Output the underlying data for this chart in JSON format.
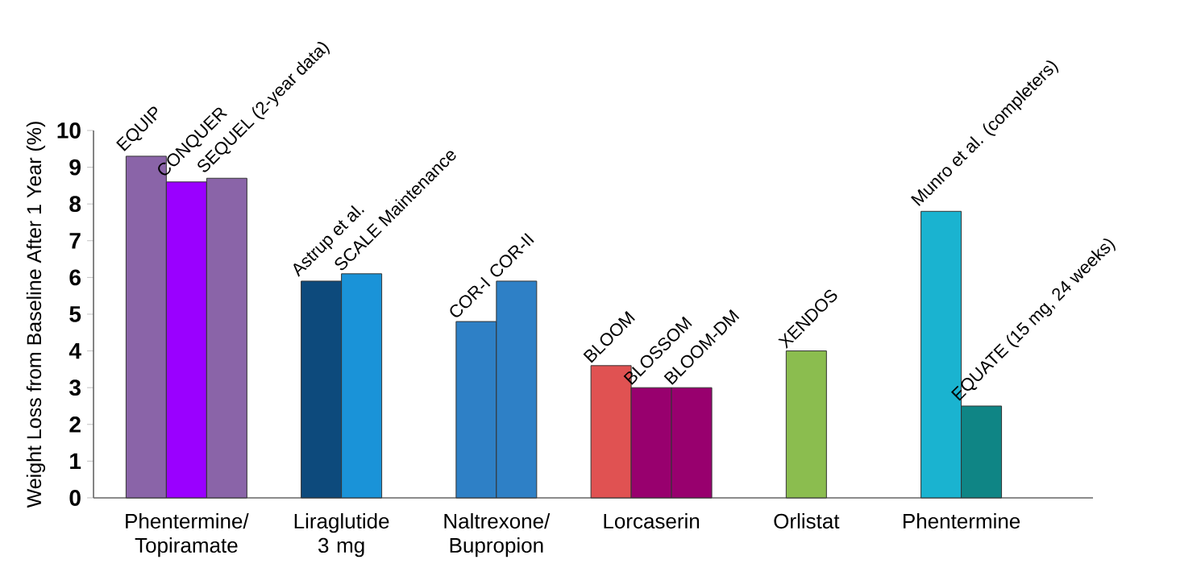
{
  "chart_data": {
    "type": "bar",
    "ylabel": "Weight Loss from Baseline After 1 Year (%)",
    "categories": [
      "Phentermine/ Topiramate",
      "Liraglutide 3 mg",
      "Naltrexone/ Bupropion",
      "Lorcaserin",
      "Orlistat",
      "Phentermine"
    ],
    "series": [
      {
        "values": [
          9.3,
          5.9,
          4.8,
          3.6,
          4.0,
          7.8
        ],
        "colors": [
          "#8a64a8",
          "#0d4a7c",
          "#2e80c6",
          "#e05252",
          "#8bbd4f",
          "#1ab3d0"
        ]
      },
      {
        "values": [
          8.6,
          6.1,
          5.9,
          3.0,
          null,
          2.5
        ],
        "colors": [
          "#9a00ff",
          "#1a93d8",
          "#2e80c6",
          "#98006e",
          null,
          "#0f8585"
        ]
      },
      {
        "values": [
          8.7,
          null,
          null,
          3.0,
          null,
          null
        ],
        "colors": [
          "#8a64a8",
          null,
          null,
          "#98006e",
          null,
          null
        ]
      }
    ],
    "ylim": [
      0,
      10
    ],
    "yticks": [
      0,
      1,
      2,
      3,
      4,
      5,
      6,
      7,
      8,
      9,
      10
    ],
    "grid": false,
    "annotations": [
      "EQUIP",
      "CONQUER",
      "SEQUEL (2-year data)",
      "Astrup et al.",
      "SCALE Maintenance",
      "COR-I",
      "COR-II",
      "BLOOM",
      "BLOSSOM",
      "BLOOM-DM",
      "XENDOS",
      "Munro et al. (completers)",
      "EQUATE (15 mg, 24 weeks)"
    ]
  }
}
